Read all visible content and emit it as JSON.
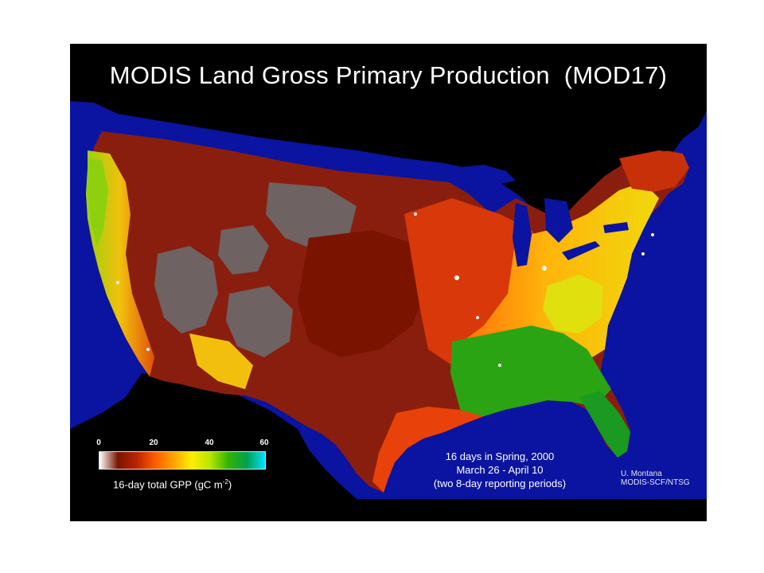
{
  "title": "MODIS Land Gross Primary Production  (MOD17)",
  "legend": {
    "ticks": [
      "0",
      "20",
      "40",
      "60"
    ],
    "tick_values": [
      0,
      20,
      40,
      60
    ],
    "range": [
      0,
      60
    ],
    "colors": [
      "#ffffff",
      "#7a1400",
      "#b82400",
      "#ff5a00",
      "#ffa000",
      "#ffef00",
      "#b8e800",
      "#32b400",
      "#00a050",
      "#00e0ff"
    ],
    "caption_main": "16-day total GPP (gC m",
    "caption_exp": "-2",
    "caption_close": ")"
  },
  "period": {
    "line1": "16 days in Spring, 2000",
    "line2": "March 26 - April 10",
    "line3": "(two 8-day reporting periods)"
  },
  "credit": {
    "line1": "U. Montana",
    "line2": "MODIS-SCF/NTSG"
  },
  "colors": {
    "ocean": "#0a14a0",
    "background": "#000000",
    "barren": "#6e6262",
    "low": "#8a1e0e",
    "medium": "#e8420a",
    "orange": "#ff7a0c",
    "yellow": "#f2d60c",
    "green": "#2aa412",
    "canada": "#000000",
    "mexico": "#000000"
  }
}
